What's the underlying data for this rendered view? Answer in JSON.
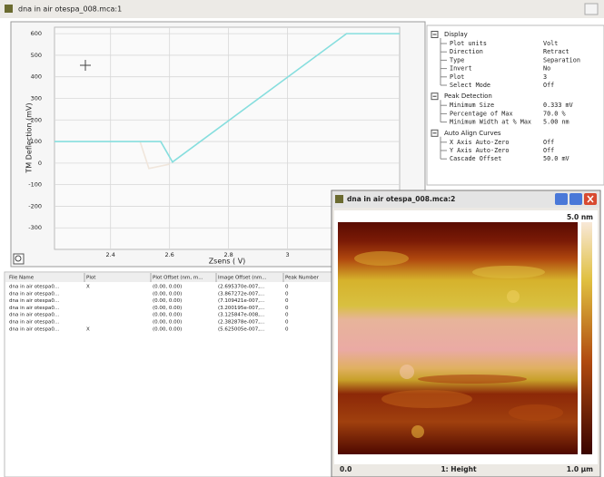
{
  "main_window": {
    "title": "dna in air otespa_008.mca:1"
  },
  "chart_data": {
    "type": "line",
    "ylabel": "TM Deflection (mV)",
    "xlabel": "Zsens ( V)",
    "xlim": [
      2.21,
      3.38
    ],
    "ylim": [
      -400,
      630
    ],
    "xticks": [
      2.4,
      2.6,
      2.8,
      3
    ],
    "yticks": [
      -300,
      -200,
      -100,
      0,
      100,
      200,
      300,
      400,
      500,
      600
    ],
    "grid": true,
    "series": [
      {
        "color": "#f0e6dc",
        "x": [
          2.5,
          2.53,
          2.6
        ],
        "values": [
          100,
          -25,
          -5
        ]
      },
      {
        "color": "#86dede",
        "x": [
          2.21,
          2.57,
          2.61,
          3.2,
          3.38
        ],
        "values": [
          100,
          100,
          5,
          600,
          600
        ]
      }
    ]
  },
  "properties": {
    "groups": [
      {
        "title": "Display",
        "items": [
          [
            "Plot units",
            "Volt"
          ],
          [
            "Direction",
            "Retract"
          ],
          [
            "Type",
            "Separation"
          ],
          [
            "Invert",
            "No"
          ],
          [
            "Plot",
            "3"
          ],
          [
            "Select Mode",
            "Off"
          ]
        ]
      },
      {
        "title": "Peak Detection",
        "items": [
          [
            "Minimum Size",
            "0.333 mV"
          ],
          [
            "Percentage of Max",
            "70.0 %"
          ],
          [
            "Minimum Width at % Max",
            "5.00 nm"
          ]
        ]
      },
      {
        "title": "Auto Align Curves",
        "items": [
          [
            "X Axis Auto-Zero",
            "Off"
          ],
          [
            "Y Axis Auto-Zero",
            "Off"
          ],
          [
            "Cascade Offset",
            "50.0 mV"
          ]
        ]
      }
    ]
  },
  "file_table": {
    "headers": [
      "File Name",
      "Plot",
      "Plot Offset (nm, m...",
      "Image Offset (nm...",
      "Peak Number"
    ],
    "rows": [
      [
        "dna in air otespa0...",
        "X",
        "(0.00, 0.00)",
        "(2.695370e-007,...",
        "0"
      ],
      [
        "dna in air otespa0...",
        null,
        "(0.00, 0.00)",
        "(3.867272e-007,...",
        "0"
      ],
      [
        "dna in air otespa0...",
        null,
        "(0.00, 0.00)",
        "(7.109421e-007,...",
        "0"
      ],
      [
        "dna in air otespa0...",
        null,
        "(0.00, 0.00)",
        "(3.200195e-007,...",
        "0"
      ],
      [
        "dna in air otespa0...",
        null,
        "(0.00, 0.00)",
        "(3.125847e-008,...",
        "0"
      ],
      [
        "dna in air otespa0...",
        null,
        "(0.00, 0.00)",
        "(2.382878e-007,...",
        "0"
      ],
      [
        "dna in air otespa0...",
        "X",
        "(0.00, 0.00)",
        "(5.625005e-007,...",
        "0"
      ]
    ]
  },
  "image_window": {
    "title": "dna in air otespa_008.mca:2",
    "scale_max": "5.0 nm",
    "x_start": "0.0",
    "channel": "1: Height",
    "x_end": "1.0 µm"
  }
}
